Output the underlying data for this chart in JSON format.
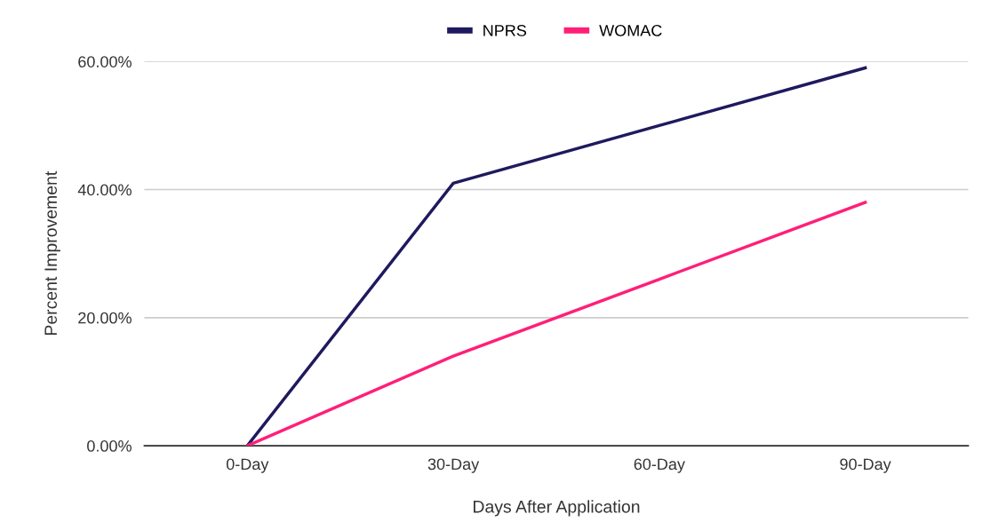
{
  "chart_data": {
    "type": "line",
    "xlabel": "Days After Application",
    "ylabel": "Percent Improvement",
    "categories": [
      "0-Day",
      "30-Day",
      "60-Day",
      "90-Day"
    ],
    "series": [
      {
        "name": "NPRS",
        "color": "#1f1a5e",
        "values": [
          0,
          41,
          50,
          59
        ]
      },
      {
        "name": "WOMAC",
        "color": "#ff1f78",
        "values": [
          0,
          14,
          26,
          38
        ]
      }
    ],
    "ylim": [
      0,
      60
    ],
    "yticks": [
      {
        "value": 0,
        "label": "0.00%"
      },
      {
        "value": 20,
        "label": "20.00%"
      },
      {
        "value": 40,
        "label": "40.00%"
      },
      {
        "value": 60,
        "label": "60.00%"
      }
    ],
    "grid": "y",
    "legend": "top",
    "line_style": "solid"
  }
}
